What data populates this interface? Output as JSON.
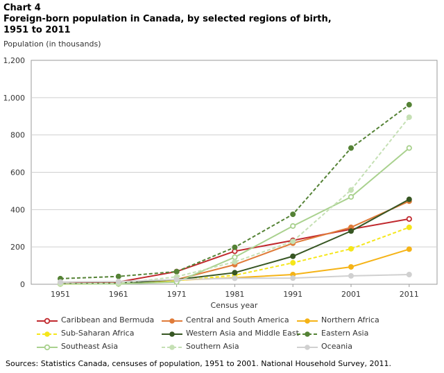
{
  "chart_label": "Chart 4",
  "title_line1": "Foreign-born population in Canada, by selected regions of birth,",
  "title_line2": "1951 to 2011",
  "source": "Sources: Statistics Canada, censuses of population, 1951 to 2001. National Household Survey, 2011.",
  "chart_data": {
    "type": "line",
    "ylabel": "Population (in thousands)",
    "xlabel": "Census year",
    "categories": [
      "1951",
      "1961",
      "1971",
      "1981",
      "1991",
      "2001",
      "2011"
    ],
    "ylim": [
      0,
      1200
    ],
    "yticks": [
      "0",
      "200",
      "400",
      "600",
      "800",
      "1,000",
      "1,200"
    ],
    "grid": true,
    "legend_position": "bottom",
    "series": [
      {
        "name": "Caribbean and Bermuda",
        "color": "#c0282d",
        "dash": false,
        "marker": "open",
        "values": [
          3,
          12,
          68,
          177,
          235,
          295,
          350
        ]
      },
      {
        "name": "Central and South America",
        "color": "#e07b39",
        "dash": false,
        "marker": "filled",
        "values": [
          2,
          5,
          25,
          105,
          220,
          305,
          445
        ]
      },
      {
        "name": "Northern Africa",
        "color": "#f5b316",
        "dash": false,
        "marker": "filled",
        "values": [
          1,
          3,
          22,
          35,
          52,
          93,
          188
        ]
      },
      {
        "name": "Sub-Saharan Africa",
        "color": "#f5e61a",
        "dash": true,
        "marker": "filled",
        "values": [
          1,
          2,
          20,
          48,
          115,
          190,
          305
        ]
      },
      {
        "name": "Western Asia and Middle East",
        "color": "#375623",
        "dash": false,
        "marker": "filled",
        "values": [
          3,
          5,
          25,
          62,
          150,
          285,
          455
        ]
      },
      {
        "name": "Eastern Asia",
        "color": "#548235",
        "dash": true,
        "marker": "filled",
        "values": [
          30,
          42,
          68,
          198,
          375,
          730,
          962
        ]
      },
      {
        "name": "Southeast Asia",
        "color": "#a9d18e",
        "dash": false,
        "marker": "open",
        "values": [
          1,
          2,
          12,
          145,
          312,
          468,
          730
        ]
      },
      {
        "name": "Southern Asia",
        "color": "#c5e0b4",
        "dash": true,
        "marker": "filled",
        "values": [
          2,
          5,
          40,
          120,
          230,
          505,
          895
        ]
      },
      {
        "name": "Oceania",
        "color": "#d0d0d0",
        "dash": false,
        "marker": "filled",
        "values": [
          12,
          15,
          25,
          32,
          33,
          45,
          52
        ]
      }
    ]
  }
}
